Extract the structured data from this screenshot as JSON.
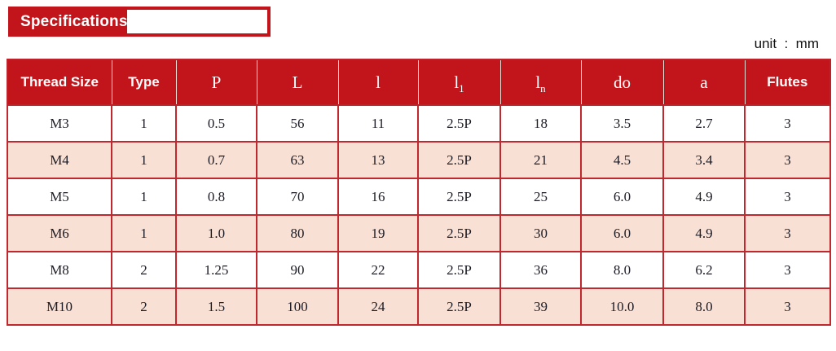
{
  "header": {
    "badge_label": "Specifications",
    "unit_label": "unit  :  mm"
  },
  "colors": {
    "accent_red": "#c2151b",
    "table_border_red": "#c0282d",
    "alt_row_pink": "#f8e0d5",
    "header_text": "#ffffff",
    "cell_text": "#1b1b25"
  },
  "table": {
    "columns": [
      {
        "key": "thread-size",
        "label": "Thread Size",
        "sub": "",
        "font": "sans"
      },
      {
        "key": "type",
        "label": "Type",
        "sub": "",
        "font": "sans"
      },
      {
        "key": "p",
        "label": "P",
        "sub": "",
        "font": "serif"
      },
      {
        "key": "l-cap",
        "label": "L",
        "sub": "",
        "font": "serif"
      },
      {
        "key": "l",
        "label": "l",
        "sub": "",
        "font": "serif"
      },
      {
        "key": "l1",
        "label": "l",
        "sub": "1",
        "font": "serif"
      },
      {
        "key": "ln",
        "label": "l",
        "sub": "n",
        "font": "serif"
      },
      {
        "key": "do",
        "label": "do",
        "sub": "",
        "font": "serif"
      },
      {
        "key": "a",
        "label": "a",
        "sub": "",
        "font": "serif"
      },
      {
        "key": "flutes",
        "label": "Flutes",
        "sub": "",
        "font": "sans"
      }
    ],
    "rows": [
      [
        "M3",
        "1",
        "0.5",
        "56",
        "11",
        "2.5P",
        "18",
        "3.5",
        "2.7",
        "3"
      ],
      [
        "M4",
        "1",
        "0.7",
        "63",
        "13",
        "2.5P",
        "21",
        "4.5",
        "3.4",
        "3"
      ],
      [
        "M5",
        "1",
        "0.8",
        "70",
        "16",
        "2.5P",
        "25",
        "6.0",
        "4.9",
        "3"
      ],
      [
        "M6",
        "1",
        "1.0",
        "80",
        "19",
        "2.5P",
        "30",
        "6.0",
        "4.9",
        "3"
      ],
      [
        "M8",
        "2",
        "1.25",
        "90",
        "22",
        "2.5P",
        "36",
        "8.0",
        "6.2",
        "3"
      ],
      [
        "M10",
        "2",
        "1.5",
        "100",
        "24",
        "2.5P",
        "39",
        "10.0",
        "8.0",
        "3"
      ]
    ]
  }
}
